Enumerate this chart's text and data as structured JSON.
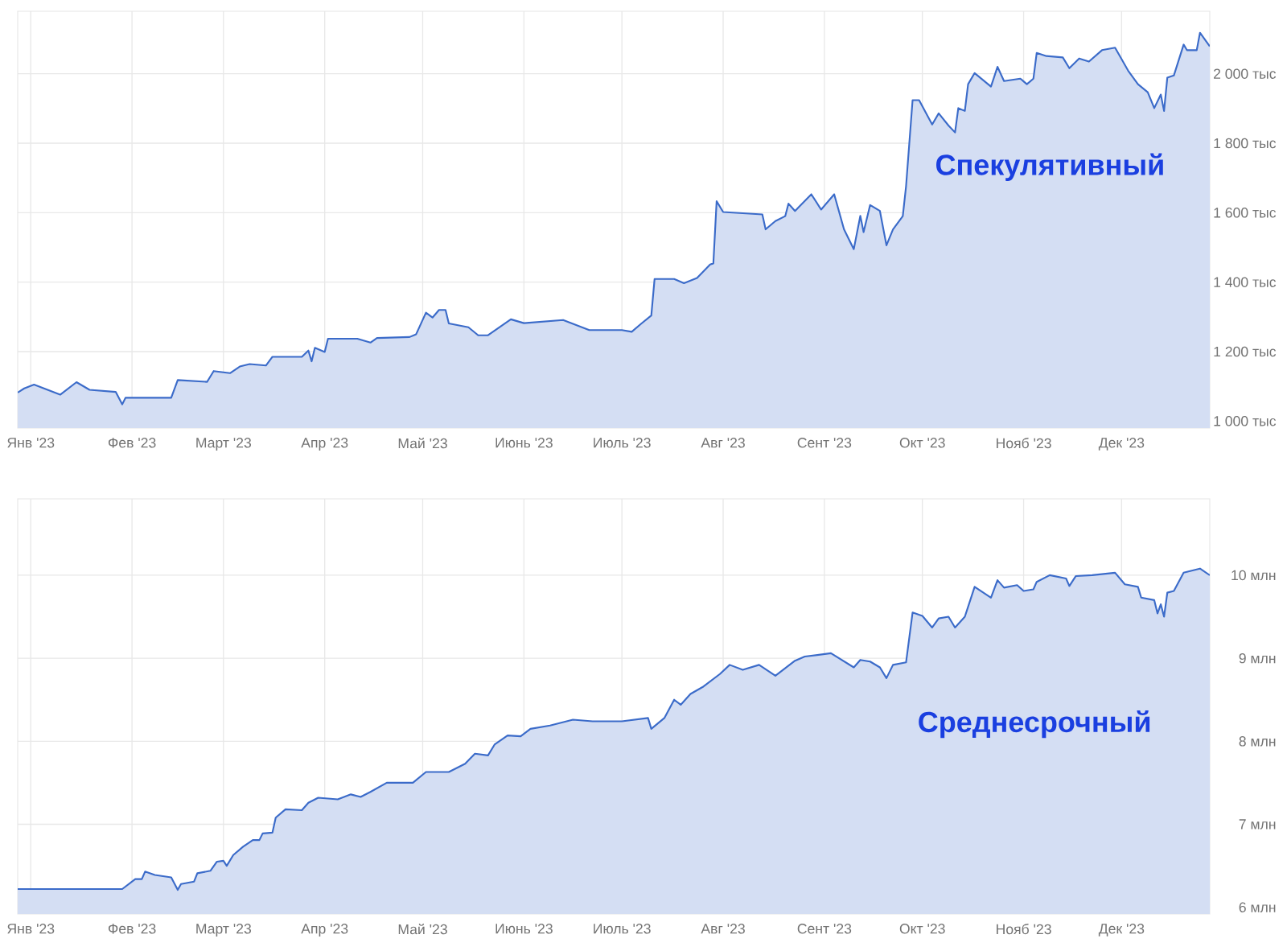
{
  "chart_data": [
    {
      "type": "area",
      "title": "Спекулятивный",
      "color": "#3b6bc9",
      "grid": true,
      "xlim": [
        "2022-12-28",
        "2023-12-28"
      ],
      "ylim": [
        980,
        2180
      ],
      "xticks": [
        {
          "value": "2023-01-01",
          "label": "Янв '23"
        },
        {
          "value": "2023-02-01",
          "label": "Фев '23"
        },
        {
          "value": "2023-03-01",
          "label": "Март '23"
        },
        {
          "value": "2023-04-01",
          "label": "Апр '23"
        },
        {
          "value": "2023-05-01",
          "label": "Май '23"
        },
        {
          "value": "2023-06-01",
          "label": "Июнь '23"
        },
        {
          "value": "2023-07-01",
          "label": "Июль '23"
        },
        {
          "value": "2023-08-01",
          "label": "Авг '23"
        },
        {
          "value": "2023-09-01",
          "label": "Сент '23"
        },
        {
          "value": "2023-10-01",
          "label": "Окт '23"
        },
        {
          "value": "2023-11-01",
          "label": "Нояб '23"
        },
        {
          "value": "2023-12-01",
          "label": "Дек '23"
        }
      ],
      "yticks": [
        {
          "value": 1000,
          "label": "1 000 тыс"
        },
        {
          "value": 1200,
          "label": "1 200 тыс"
        },
        {
          "value": 1400,
          "label": "1 400 тыс"
        },
        {
          "value": 1600,
          "label": "1 600 тыс"
        },
        {
          "value": 1800,
          "label": "1 800 тыс"
        },
        {
          "value": 2000,
          "label": "2 000 тыс"
        }
      ],
      "x": [
        "2022-12-28",
        "2022-12-30",
        "2023-01-02",
        "2023-01-10",
        "2023-01-15",
        "2023-01-19",
        "2023-01-27",
        "2023-01-29",
        "2023-01-30",
        "2023-02-13",
        "2023-02-15",
        "2023-02-24",
        "2023-02-26",
        "2023-03-03",
        "2023-03-06",
        "2023-03-09",
        "2023-03-14",
        "2023-03-16",
        "2023-03-25",
        "2023-03-27",
        "2023-03-28",
        "2023-03-29",
        "2023-04-01",
        "2023-04-02",
        "2023-04-11",
        "2023-04-15",
        "2023-04-17",
        "2023-04-27",
        "2023-04-29",
        "2023-05-02",
        "2023-05-04",
        "2023-05-06",
        "2023-05-08",
        "2023-05-09",
        "2023-05-15",
        "2023-05-18",
        "2023-05-21",
        "2023-05-28",
        "2023-06-01",
        "2023-06-13",
        "2023-06-21",
        "2023-07-01",
        "2023-07-04",
        "2023-07-07",
        "2023-07-10",
        "2023-07-11",
        "2023-07-17",
        "2023-07-20",
        "2023-07-24",
        "2023-07-28",
        "2023-07-29",
        "2023-07-30",
        "2023-08-01",
        "2023-08-13",
        "2023-08-14",
        "2023-08-17",
        "2023-08-20",
        "2023-08-21",
        "2023-08-23",
        "2023-08-28",
        "2023-08-31",
        "2023-09-04",
        "2023-09-07",
        "2023-09-10",
        "2023-09-12",
        "2023-09-13",
        "2023-09-15",
        "2023-09-18",
        "2023-09-20",
        "2023-09-22",
        "2023-09-25",
        "2023-09-26",
        "2023-09-28",
        "2023-09-30",
        "2023-10-04",
        "2023-10-06",
        "2023-10-09",
        "2023-10-11",
        "2023-10-12",
        "2023-10-14",
        "2023-10-15",
        "2023-10-17",
        "2023-10-22",
        "2023-10-24",
        "2023-10-26",
        "2023-10-31",
        "2023-11-02",
        "2023-11-04",
        "2023-11-05",
        "2023-11-08",
        "2023-11-13",
        "2023-11-15",
        "2023-11-18",
        "2023-11-21",
        "2023-11-25",
        "2023-11-29",
        "2023-12-03",
        "2023-12-06",
        "2023-12-09",
        "2023-12-11",
        "2023-12-13",
        "2023-12-14",
        "2023-12-15",
        "2023-12-17",
        "2023-12-20",
        "2023-12-21",
        "2023-12-24",
        "2023-12-25",
        "2023-12-28"
      ],
      "values": [
        1082,
        1094,
        1105,
        1076,
        1112,
        1090,
        1084,
        1048,
        1067,
        1067,
        1118,
        1113,
        1144,
        1138,
        1157,
        1164,
        1160,
        1185,
        1185,
        1203,
        1172,
        1211,
        1199,
        1237,
        1237,
        1226,
        1239,
        1242,
        1250,
        1312,
        1298,
        1320,
        1320,
        1281,
        1270,
        1247,
        1247,
        1293,
        1282,
        1291,
        1262,
        1262,
        1257,
        1281,
        1304,
        1409,
        1409,
        1397,
        1412,
        1451,
        1454,
        1633,
        1602,
        1595,
        1552,
        1576,
        1590,
        1626,
        1605,
        1653,
        1609,
        1653,
        1552,
        1495,
        1591,
        1544,
        1622,
        1605,
        1506,
        1552,
        1590,
        1676,
        1924,
        1924,
        1854,
        1886,
        1851,
        1831,
        1901,
        1893,
        1970,
        2002,
        1963,
        2020,
        1979,
        1986,
        1970,
        1986,
        2060,
        2051,
        2047,
        2016,
        2044,
        2035,
        2068,
        2075,
        2009,
        1970,
        1947,
        1901,
        1940,
        1893,
        1989,
        1995,
        2084,
        2068,
        2068,
        2118,
        2079
      ]
    },
    {
      "type": "area",
      "title": "Среднесрочный",
      "color": "#3b6bc9",
      "grid": true,
      "xlim": [
        "2022-12-28",
        "2023-12-28"
      ],
      "ylim": [
        5.92,
        10.92
      ],
      "xticks": [
        {
          "value": "2023-01-01",
          "label": "Янв '23"
        },
        {
          "value": "2023-02-01",
          "label": "Фев '23"
        },
        {
          "value": "2023-03-01",
          "label": "Март '23"
        },
        {
          "value": "2023-04-01",
          "label": "Апр '23"
        },
        {
          "value": "2023-05-01",
          "label": "Май '23"
        },
        {
          "value": "2023-06-01",
          "label": "Июнь '23"
        },
        {
          "value": "2023-07-01",
          "label": "Июль '23"
        },
        {
          "value": "2023-08-01",
          "label": "Авг '23"
        },
        {
          "value": "2023-09-01",
          "label": "Сент '23"
        },
        {
          "value": "2023-10-01",
          "label": "Окт '23"
        },
        {
          "value": "2023-11-01",
          "label": "Нояб '23"
        },
        {
          "value": "2023-12-01",
          "label": "Дек '23"
        }
      ],
      "yticks": [
        {
          "value": 6,
          "label": "6 млн"
        },
        {
          "value": 7,
          "label": "7 млн"
        },
        {
          "value": 8,
          "label": "8 млн"
        },
        {
          "value": 9,
          "label": "9 млн"
        },
        {
          "value": 10,
          "label": "10 млн"
        }
      ],
      "x": [
        "2022-12-28",
        "2023-01-29",
        "2023-02-02",
        "2023-02-04",
        "2023-02-05",
        "2023-02-08",
        "2023-02-13",
        "2023-02-15",
        "2023-02-16",
        "2023-02-20",
        "2023-02-21",
        "2023-02-25",
        "2023-02-27",
        "2023-03-01",
        "2023-03-02",
        "2023-03-04",
        "2023-03-07",
        "2023-03-10",
        "2023-03-12",
        "2023-03-13",
        "2023-03-16",
        "2023-03-17",
        "2023-03-20",
        "2023-03-25",
        "2023-03-27",
        "2023-03-30",
        "2023-04-05",
        "2023-04-09",
        "2023-04-12",
        "2023-04-15",
        "2023-04-20",
        "2023-04-28",
        "2023-05-02",
        "2023-05-09",
        "2023-05-14",
        "2023-05-17",
        "2023-05-21",
        "2023-05-23",
        "2023-05-27",
        "2023-05-31",
        "2023-06-03",
        "2023-06-09",
        "2023-06-16",
        "2023-06-22",
        "2023-07-01",
        "2023-07-09",
        "2023-07-10",
        "2023-07-14",
        "2023-07-17",
        "2023-07-19",
        "2023-07-22",
        "2023-07-26",
        "2023-07-31",
        "2023-08-03",
        "2023-08-07",
        "2023-08-12",
        "2023-08-17",
        "2023-08-23",
        "2023-08-26",
        "2023-09-03",
        "2023-09-10",
        "2023-09-12",
        "2023-09-15",
        "2023-09-18",
        "2023-09-20",
        "2023-09-22",
        "2023-09-26",
        "2023-09-28",
        "2023-10-01",
        "2023-10-04",
        "2023-10-06",
        "2023-10-09",
        "2023-10-11",
        "2023-10-14",
        "2023-10-17",
        "2023-10-22",
        "2023-10-24",
        "2023-10-26",
        "2023-10-30",
        "2023-11-01",
        "2023-11-04",
        "2023-11-05",
        "2023-11-09",
        "2023-11-14",
        "2023-11-15",
        "2023-11-17",
        "2023-11-22",
        "2023-11-29",
        "2023-12-02",
        "2023-12-06",
        "2023-12-07",
        "2023-12-11",
        "2023-12-12",
        "2023-12-13",
        "2023-12-14",
        "2023-12-15",
        "2023-12-17",
        "2023-12-20",
        "2023-12-25",
        "2023-12-28"
      ],
      "values": [
        6.22,
        6.22,
        6.34,
        6.34,
        6.43,
        6.39,
        6.36,
        6.21,
        6.28,
        6.31,
        6.41,
        6.44,
        6.55,
        6.56,
        6.5,
        6.63,
        6.73,
        6.81,
        6.81,
        6.89,
        6.9,
        7.08,
        7.18,
        7.17,
        7.26,
        7.32,
        7.3,
        7.36,
        7.33,
        7.39,
        7.5,
        7.5,
        7.63,
        7.63,
        7.73,
        7.85,
        7.83,
        7.96,
        8.07,
        8.06,
        8.15,
        8.19,
        8.26,
        8.24,
        8.24,
        8.28,
        8.15,
        8.28,
        8.5,
        8.44,
        8.57,
        8.66,
        8.81,
        8.92,
        8.86,
        8.92,
        8.79,
        8.97,
        9.02,
        9.06,
        8.89,
        8.98,
        8.96,
        8.89,
        8.76,
        8.92,
        8.95,
        9.55,
        9.51,
        9.37,
        9.48,
        9.5,
        9.37,
        9.5,
        9.86,
        9.73,
        9.94,
        9.85,
        9.88,
        9.81,
        9.83,
        9.92,
        10.0,
        9.96,
        9.87,
        9.99,
        10.0,
        10.03,
        9.89,
        9.86,
        9.73,
        9.7,
        9.54,
        9.65,
        9.5,
        9.79,
        9.81,
        10.03,
        10.08,
        10.0
      ]
    }
  ]
}
